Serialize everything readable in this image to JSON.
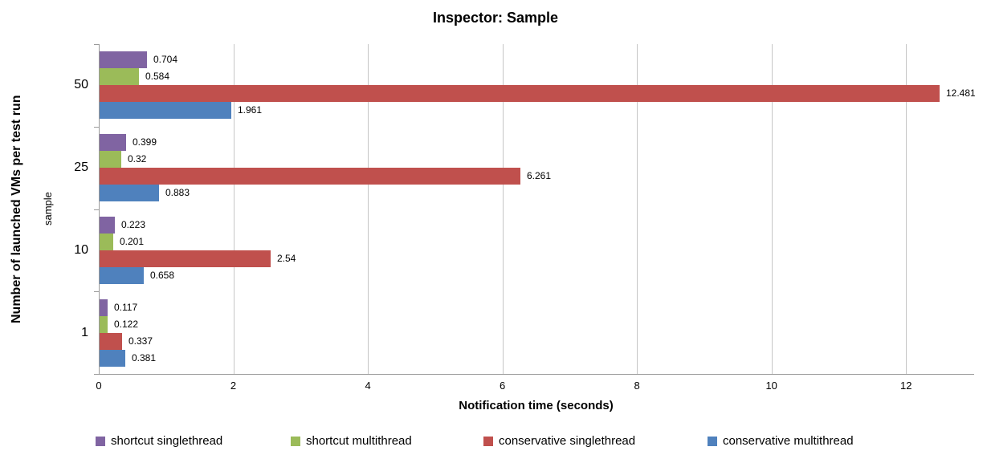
{
  "chart_data": {
    "type": "bar",
    "orientation": "horizontal",
    "title": "Inspector: Sample",
    "xlabel": "Notification time (seconds)",
    "ylabel": "Number of launched VMs per test run",
    "ylabel_secondary": "sample",
    "categories": [
      "50",
      "25",
      "10",
      "1"
    ],
    "series": [
      {
        "name": "shortcut singlethread",
        "color": "#8064A2",
        "values": [
          0.704,
          0.399,
          0.223,
          0.117
        ],
        "labels": [
          "0.704",
          "0.399",
          "0.223",
          "0.117"
        ]
      },
      {
        "name": "shortcut multithread",
        "color": "#9BBB59",
        "values": [
          0.584,
          0.32,
          0.201,
          0.122
        ],
        "labels": [
          "0.584",
          "0.32",
          "0.201",
          "0.122"
        ]
      },
      {
        "name": "conservative singlethread",
        "color": "#C0504D",
        "values": [
          12.481,
          6.261,
          2.54,
          0.337
        ],
        "labels": [
          "12.481",
          "6.261",
          "2.54",
          "0.337"
        ]
      },
      {
        "name": "conservative multithread",
        "color": "#4F81BD",
        "values": [
          1.961,
          0.883,
          0.658,
          0.381
        ],
        "labels": [
          "1.961",
          "0.883",
          "0.658",
          "0.381"
        ]
      }
    ],
    "xlim": [
      0,
      13
    ],
    "xticks": [
      0,
      2,
      4,
      6,
      8,
      10,
      12
    ],
    "xtick_labels": [
      "0",
      "2",
      "4",
      "6",
      "8",
      "10",
      "12"
    ],
    "grid": "vertical-major",
    "legend_position": "bottom",
    "colors": {
      "gridline": "#C6C6C6",
      "axis": "#9B9B9B",
      "text": "#000000",
      "background": "#FFFFFF"
    }
  }
}
